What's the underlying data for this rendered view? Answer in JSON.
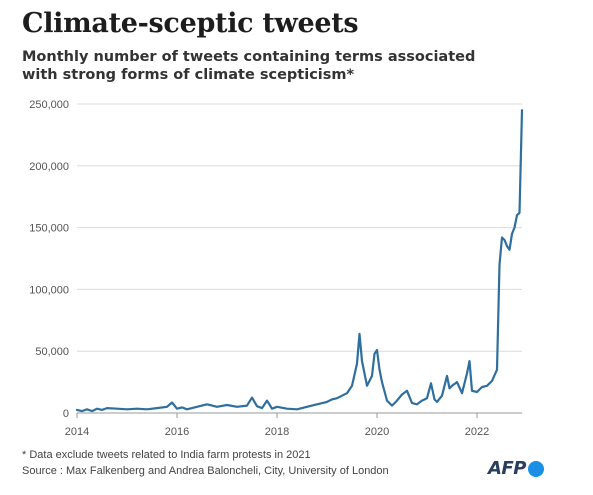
{
  "header": {
    "title": "Climate-sceptic tweets",
    "subtitle_line1": "Monthly number of tweets containing terms associated",
    "subtitle_line2": "with strong forms of climate scepticism*"
  },
  "footer": {
    "note": "* Data exclude tweets related to India farm protests in 2021",
    "source": "Source : Max Falkenberg and Andrea Baloncheli, City, University of London",
    "logo": "AFP"
  },
  "colors": {
    "line": "#2f6f9f",
    "grid": "#dcdcdc",
    "axis": "#999999",
    "logo_dot": "#1a8fe3"
  },
  "chart_data": {
    "type": "line",
    "title": "Climate-sceptic tweets",
    "xlabel": "",
    "ylabel": "",
    "xlim": [
      2014,
      2022.9
    ],
    "ylim": [
      0,
      250000
    ],
    "yticks": [
      0,
      50000,
      100000,
      150000,
      200000,
      250000
    ],
    "yticklabels": [
      "0",
      "50,000",
      "100,000",
      "150,000",
      "200,000",
      "250,000"
    ],
    "xticks": [
      2014,
      2016,
      2018,
      2020,
      2022
    ],
    "xticklabels": [
      "2014",
      "2016",
      "2018",
      "2020",
      "2022"
    ],
    "grid": "horizontal",
    "legend": "none",
    "series": [
      {
        "x": [
          2014.0,
          2014.1,
          2014.2,
          2014.3,
          2014.4,
          2014.5,
          2014.6,
          2014.8,
          2015.0,
          2015.2,
          2015.4,
          2015.6,
          2015.8,
          2015.9,
          2016.0,
          2016.1,
          2016.2,
          2016.4,
          2016.6,
          2016.8,
          2017.0,
          2017.2,
          2017.4,
          2017.5,
          2017.6,
          2017.7,
          2017.8,
          2017.9,
          2018.0,
          2018.2,
          2018.4,
          2018.6,
          2018.8,
          2019.0,
          2019.1,
          2019.2,
          2019.4,
          2019.5,
          2019.6,
          2019.65,
          2019.7,
          2019.8,
          2019.9,
          2019.95,
          2020.0,
          2020.05,
          2020.1,
          2020.2,
          2020.3,
          2020.4,
          2020.5,
          2020.6,
          2020.7,
          2020.8,
          2020.9,
          2021.0,
          2021.08,
          2021.15,
          2021.2,
          2021.3,
          2021.4,
          2021.45,
          2021.5,
          2021.6,
          2021.7,
          2021.8,
          2021.85,
          2021.9,
          2022.0,
          2022.1,
          2022.2,
          2022.3,
          2022.4,
          2022.45,
          2022.5,
          2022.55,
          2022.6,
          2022.65,
          2022.7,
          2022.75,
          2022.8,
          2022.85,
          2022.9
        ],
        "values": [
          2500,
          1500,
          3000,
          1500,
          3500,
          2500,
          4000,
          3500,
          3000,
          3500,
          3000,
          4000,
          5000,
          8500,
          3500,
          4500,
          3000,
          5000,
          7000,
          5000,
          6500,
          5000,
          6000,
          12500,
          5500,
          4000,
          10000,
          3500,
          5000,
          3500,
          3000,
          5000,
          7000,
          9000,
          11000,
          12000,
          16000,
          22000,
          40000,
          64000,
          42000,
          22000,
          30000,
          48000,
          51000,
          35000,
          25000,
          10000,
          6000,
          10000,
          15000,
          18000,
          8000,
          7000,
          10000,
          12000,
          24000,
          11000,
          9000,
          14000,
          30000,
          20000,
          22000,
          25000,
          16000,
          32000,
          42000,
          18000,
          17000,
          21000,
          22000,
          26000,
          35000,
          120000,
          142000,
          140000,
          135000,
          132000,
          145000,
          150000,
          160000,
          162000,
          245000
        ]
      }
    ]
  }
}
